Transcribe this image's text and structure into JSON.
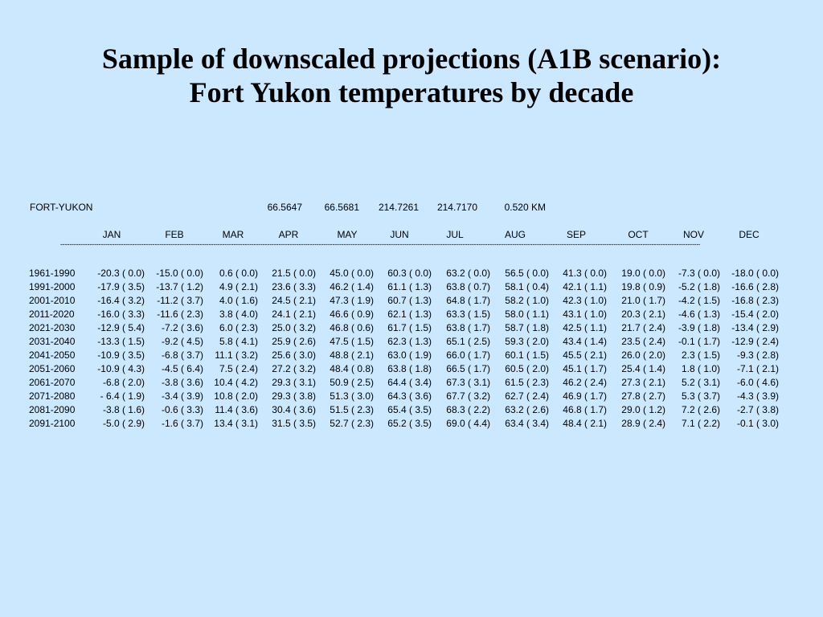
{
  "title": {
    "line1": "Sample of downscaled projections (A1B scenario):",
    "line2": "Fort Yukon temperatures by decade"
  },
  "station": {
    "name": "FORT-YUKON",
    "values": [
      "66.5647",
      "66.5681",
      "214.7261",
      "214.7170",
      "0.520 KM"
    ]
  },
  "months": [
    "JAN",
    "FEB",
    "MAR",
    "APR",
    "MAY",
    "JUN",
    "JUL",
    "AUG",
    "SEP",
    "OCT",
    "NOV",
    "DEC"
  ],
  "separator": "------------------------------------------------------------------------------------------------------------------------------------------------------------------------------------------------------------------------------------------------------------------------------------------------------------------",
  "rows": [
    {
      "period": "1961-1990",
      "cells": [
        "-20.3 ( 0.0)",
        "-15.0 ( 0.0)",
        "0.6 ( 0.0)",
        "21.5 ( 0.0)",
        "45.0 ( 0.0)",
        "60.3 ( 0.0)",
        "63.2 ( 0.0)",
        "56.5 ( 0.0)",
        "41.3 ( 0.0)",
        "19.0 ( 0.0)",
        "-7.3 ( 0.0)",
        "-18.0 ( 0.0)"
      ]
    },
    {
      "period": "1991-2000",
      "cells": [
        "-17.9 ( 3.5)",
        "-13.7 ( 1.2)",
        "4.9 ( 2.1)",
        "23.6 ( 3.3)",
        "46.2 ( 1.4)",
        "61.1 ( 1.3)",
        "63.8 ( 0.7)",
        "58.1 ( 0.4)",
        "42.1 ( 1.1)",
        "19.8 ( 0.9)",
        "-5.2 ( 1.8)",
        "-16.6 ( 2.8)"
      ]
    },
    {
      "period": "2001-2010",
      "cells": [
        "-16.4 ( 3.2)",
        "-11.2 ( 3.7)",
        "4.0 ( 1.6)",
        "24.5 ( 2.1)",
        "47.3 ( 1.9)",
        "60.7 ( 1.3)",
        "64.8 ( 1.7)",
        "58.2 ( 1.0)",
        "42.3 ( 1.0)",
        "21.0 ( 1.7)",
        "-4.2 ( 1.5)",
        "-16.8 ( 2.3)"
      ]
    },
    {
      "period": "2011-2020",
      "cells": [
        "-16.0 ( 3.3)",
        "-11.6 ( 2.3)",
        "3.8 ( 4.0)",
        "24.1 ( 2.1)",
        "46.6 ( 0.9)",
        "62.1 ( 1.3)",
        "63.3 ( 1.5)",
        "58.0 ( 1.1)",
        "43.1 ( 1.0)",
        "20.3 ( 2.1)",
        "-4.6 ( 1.3)",
        "-15.4 ( 2.0)"
      ]
    },
    {
      "period": "2021-2030",
      "cells": [
        "-12.9 ( 5.4)",
        "-7.2 ( 3.6)",
        "6.0 ( 2.3)",
        "25.0 ( 3.2)",
        "46.8 ( 0.6)",
        "61.7 ( 1.5)",
        "63.8 ( 1.7)",
        "58.7 ( 1.8)",
        "42.5 ( 1.1)",
        "21.7 ( 2.4)",
        "-3.9 ( 1.8)",
        "-13.4 ( 2.9)"
      ]
    },
    {
      "period": "2031-2040",
      "cells": [
        "-13.3 ( 1.5)",
        "-9.2 ( 4.5)",
        "5.8 ( 4.1)",
        "25.9 ( 2.6)",
        "47.5 ( 1.5)",
        "62.3 ( 1.3)",
        "65.1 ( 2.5)",
        "59.3 ( 2.0)",
        "43.4 ( 1.4)",
        "23.5 ( 2.4)",
        "-0.1 ( 1.7)",
        "-12.9 ( 2.4)"
      ]
    },
    {
      "period": "2041-2050",
      "cells": [
        "-10.9 ( 3.5)",
        "-6.8 ( 3.7)",
        "11.1 ( 3.2)",
        "25.6 ( 3.0)",
        "48.8 ( 2.1)",
        "63.0 ( 1.9)",
        "66.0 ( 1.7)",
        "60.1 ( 1.5)",
        "45.5 ( 2.1)",
        "26.0 ( 2.0)",
        "2.3 ( 1.5)",
        "-9.3 ( 2.8)"
      ]
    },
    {
      "period": "2051-2060",
      "cells": [
        "-10.9 ( 4.3)",
        "-4.5 ( 6.4)",
        "7.5 ( 2.4)",
        "27.2 ( 3.2)",
        "48.4 ( 0.8)",
        "63.8 ( 1.8)",
        "66.5 ( 1.7)",
        "60.5 ( 2.0)",
        "45.1 ( 1.7)",
        "25.4 ( 1.4)",
        "1.8 ( 1.0)",
        "-7.1 ( 2.1)"
      ]
    },
    {
      "period": "2061-2070",
      "cells": [
        "-6.8 ( 2.0)",
        "-3.8 ( 3.6)",
        "10.4 ( 4.2)",
        "29.3 ( 3.1)",
        "50.9 ( 2.5)",
        "64.4 ( 3.4)",
        "67.3 ( 3.1)",
        "61.5 ( 2.3)",
        "46.2 ( 2.4)",
        "27.3 ( 2.1)",
        "5.2 ( 3.1)",
        "-6.0 ( 4.6)"
      ]
    },
    {
      "period": "2071-2080",
      "cells": [
        "- 6.4 ( 1.9)",
        "-3.4 ( 3.9)",
        "10.8 ( 2.0)",
        "29.3 ( 3.8)",
        "51.3 ( 3.0)",
        "64.3 ( 3.6)",
        "67.7 ( 3.2)",
        "62.7 ( 2.4)",
        "46.9 ( 1.7)",
        "27.8 ( 2.7)",
        "5.3 ( 3.7)",
        "-4.3 ( 3.9)"
      ]
    },
    {
      "period": "2081-2090",
      "cells": [
        "-3.8 ( 1.6)",
        "-0.6 ( 3.3)",
        "11.4 ( 3.6)",
        "30.4 ( 3.6)",
        "51.5 ( 2.3)",
        "65.4 ( 3.5)",
        "68.3 ( 2.2)",
        "63.2 ( 2.6)",
        "46.8 ( 1.7)",
        "29.0 ( 1.2)",
        "7.2 ( 2.6)",
        "-2.7 ( 3.8)"
      ]
    },
    {
      "period": "2091-2100",
      "cells": [
        "-5.0 ( 2.9)",
        "-1.6 ( 3.7)",
        "13.4 ( 3.1)",
        "31.5 ( 3.5)",
        "52.7 ( 2.3)",
        "65.2 ( 3.5)",
        "69.0 ( 4.4)",
        "63.4 ( 3.4)",
        "48.4 ( 2.1)",
        "28.9 ( 2.4)",
        "7.1 ( 2.2)",
        "-0.1 ( 3.0)"
      ]
    }
  ]
}
